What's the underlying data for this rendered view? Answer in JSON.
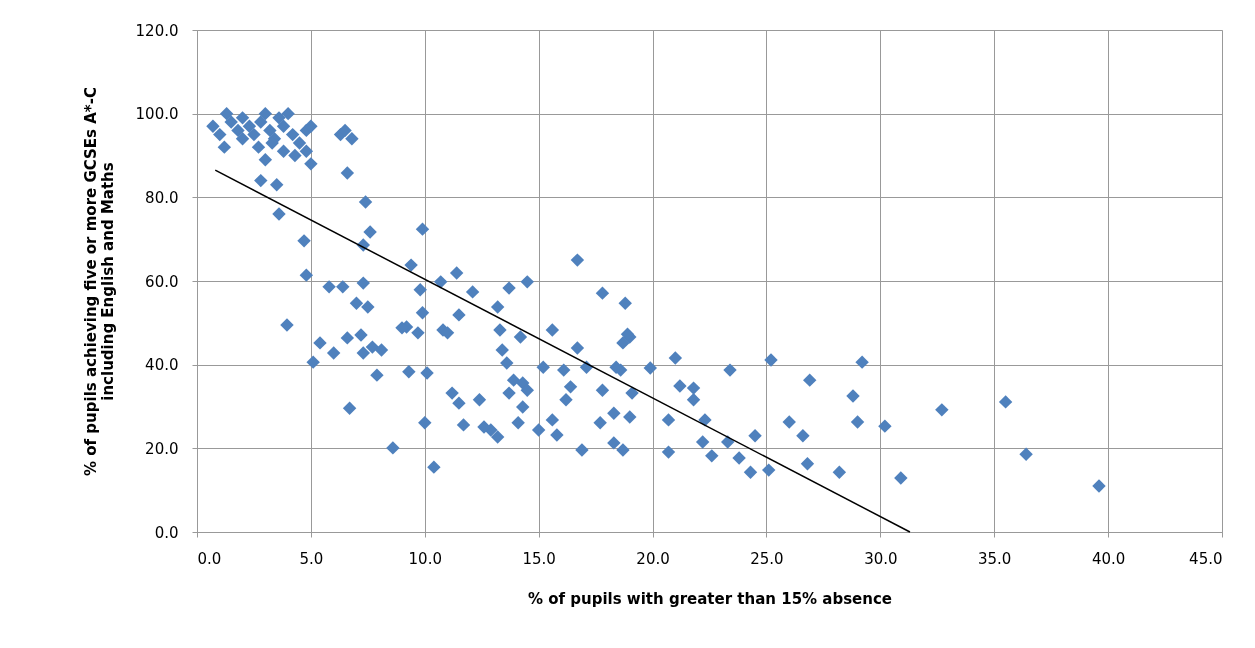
{
  "chart_data": {
    "type": "scatter",
    "xlabel": "% of pupils with greater than 15% absence",
    "ylabel": "% of pupils achieving  five or more GCSEs A*-C\nincluding English and Maths",
    "xlim": [
      0,
      45
    ],
    "ylim": [
      0,
      120
    ],
    "xticks": [
      {
        "value": 0,
        "label": "0.0"
      },
      {
        "value": 5,
        "label": "5.0"
      },
      {
        "value": 10,
        "label": "10.0"
      },
      {
        "value": 15,
        "label": "15.0"
      },
      {
        "value": 20,
        "label": "20.0"
      },
      {
        "value": 25,
        "label": "25.0"
      },
      {
        "value": 30,
        "label": "30.0"
      },
      {
        "value": 35,
        "label": "35.0"
      },
      {
        "value": 40,
        "label": "40.0"
      },
      {
        "value": 45,
        "label": "45.0"
      }
    ],
    "yticks": [
      {
        "value": 0,
        "label": "0.0"
      },
      {
        "value": 20,
        "label": "20.0"
      },
      {
        "value": 40,
        "label": "40.0"
      },
      {
        "value": 60,
        "label": "60.0"
      },
      {
        "value": 80,
        "label": "80.0"
      },
      {
        "value": 100,
        "label": "100.0"
      },
      {
        "value": 120,
        "label": "120.0"
      }
    ],
    "grid": true,
    "series": [
      {
        "marker": "diamond",
        "color": "#4f81bd",
        "x": [
          0.7,
          1.0,
          1.2,
          1.5,
          1.8,
          2.0,
          2.3,
          2.5,
          2.8,
          3.0,
          3.2,
          3.4,
          3.6,
          3.8,
          4.0,
          4.2,
          4.5,
          4.8,
          5.0,
          1.3,
          2.0,
          2.7,
          3.0,
          3.3,
          3.8,
          4.3,
          4.8,
          5.0,
          6.3,
          6.5,
          6.8,
          2.8,
          3.5,
          3.6,
          6.6,
          7.4,
          4.7,
          7.6,
          7.3,
          9.9,
          4.8,
          9.4,
          9.8,
          11.4,
          12.1,
          13.7,
          3.95,
          5.8,
          6.4,
          7.3,
          7.0,
          7.5,
          9.9,
          11.5,
          10.8,
          13.2,
          9.2,
          13.3,
          5.4,
          5.1,
          6.0,
          6.6,
          7.2,
          7.7,
          8.1,
          7.9,
          7.3,
          6.7,
          8.6,
          10.4,
          9.3,
          10.1,
          9.0,
          9.7,
          10.0,
          11.2,
          11.5,
          12.4,
          11.7,
          12.9,
          13.2,
          12.6,
          14.1,
          14.3,
          15.0,
          15.6,
          15.8,
          16.9,
          17.7,
          18.3,
          18.7,
          18.3,
          19.0,
          17.8,
          18.6,
          19.1,
          13.4,
          13.6,
          13.9,
          13.7,
          14.3,
          14.2,
          14.5,
          15.2,
          16.1,
          16.4,
          16.2,
          15.6,
          16.7,
          17.1,
          16.7,
          17.8,
          18.8,
          19.0,
          18.7,
          18.4,
          10.7,
          14.5,
          11.0,
          18.9,
          19.9,
          21.0,
          23.4,
          25.2,
          26.9,
          29.2,
          28.8,
          29.0,
          30.2,
          32.7,
          35.5,
          36.4,
          39.6,
          30.9,
          28.2,
          26.8,
          26.0,
          26.6,
          25.1,
          24.5,
          24.3,
          23.8,
          23.3,
          22.6,
          22.2,
          22.3,
          21.8,
          21.8,
          21.2,
          20.7,
          20.7
        ],
        "values": [
          97,
          95,
          92,
          98,
          96,
          99,
          97,
          95,
          98,
          100,
          96,
          94,
          99,
          97,
          100,
          95,
          93,
          96,
          97,
          100,
          94,
          92,
          89,
          93,
          91,
          90,
          91,
          88,
          95,
          96,
          94,
          84,
          83,
          76,
          85.8,
          78.9,
          69.6,
          71.7,
          68.6,
          72.4,
          61.4,
          63.8,
          57.9,
          61.9,
          57.4,
          58.3,
          49.5,
          58.6,
          58.6,
          59.5,
          54.7,
          53.8,
          52.4,
          51.9,
          48.3,
          53.8,
          49,
          48.3,
          45.2,
          40.6,
          42.8,
          46.4,
          47.1,
          44.2,
          43.5,
          37.5,
          42.8,
          29.6,
          20.1,
          15.5,
          38.3,
          38.0,
          48.8,
          47.6,
          26.1,
          33.2,
          30.8,
          31.6,
          25.6,
          24.4,
          22.7,
          25.1,
          26.1,
          29.9,
          24.4,
          26.8,
          23.2,
          19.6,
          26.1,
          21.3,
          19.6,
          28.4,
          27.5,
          33.9,
          38.7,
          33.2,
          43.5,
          40.4,
          36.3,
          33.2,
          35.6,
          46.6,
          33.9,
          39.4,
          38.7,
          34.7,
          31.6,
          48.3,
          44,
          39.4,
          65,
          57.1,
          54.7,
          46.6,
          45.2,
          39.4,
          59.8,
          59.8,
          47.6,
          47.3,
          39.2,
          41.6,
          38.7,
          41.1,
          36.3,
          40.6,
          32.5,
          26.3,
          25.3,
          29.2,
          31.1,
          18.6,
          11,
          12.9,
          14.3,
          16.3,
          26.3,
          23,
          14.8,
          23,
          14.3,
          17.7,
          21.5,
          18.2,
          21.5,
          26.8,
          31.6,
          34.4,
          34.9,
          26.8,
          19.1
        ]
      },
      {
        "type": "line",
        "color": "#000000",
        "line_style": "solid",
        "marker": "none",
        "x": [
          0.8,
          31.3
        ],
        "values": [
          86.5,
          0
        ]
      }
    ]
  }
}
